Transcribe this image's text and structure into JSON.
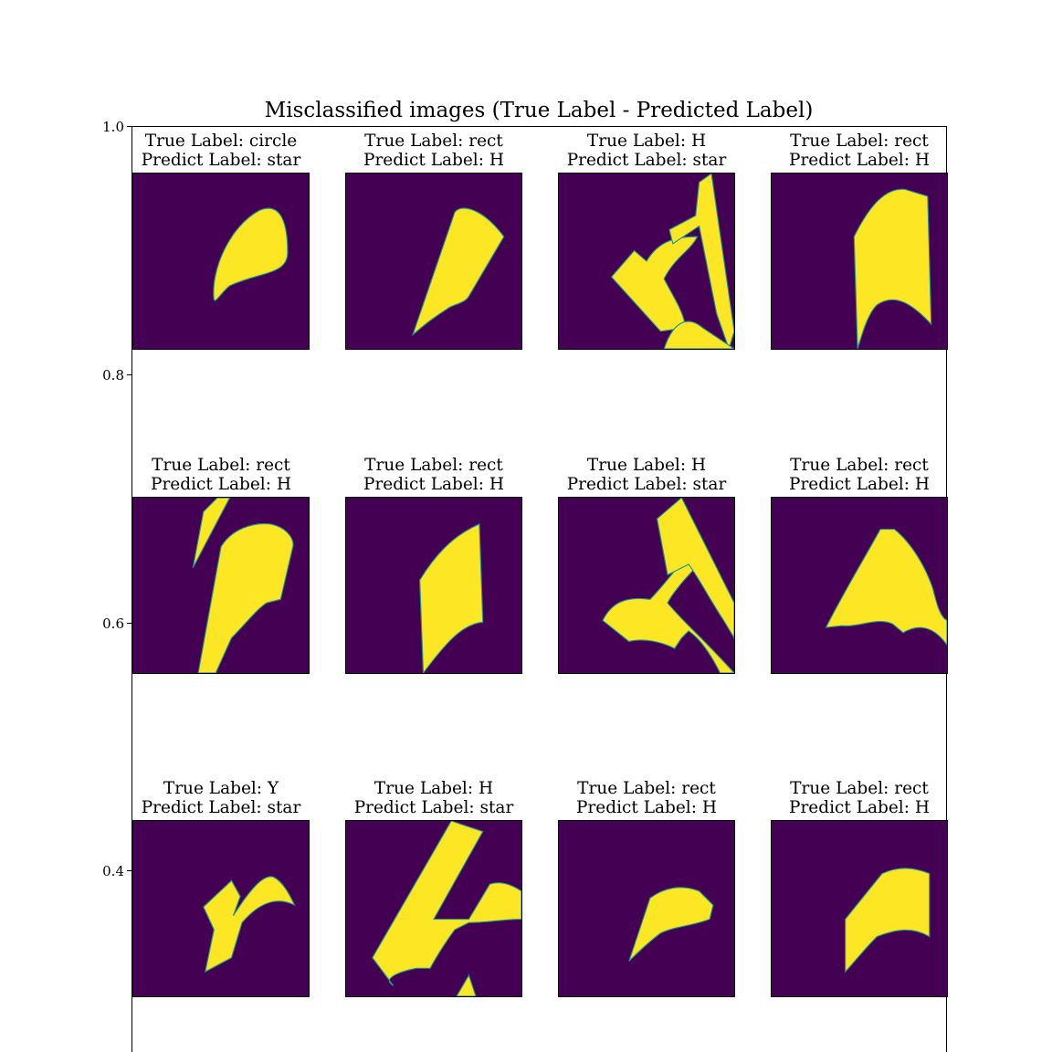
{
  "chart_data": {
    "type": "image-grid",
    "title": "Misclassified images (True Label - Predicted Label)",
    "ylim": [
      0,
      1.0
    ],
    "yticks": [
      "1.0",
      "0.8",
      "0.6",
      "0.4"
    ],
    "colors": {
      "background": "#440154",
      "foreground": "#fde725",
      "edge": "#21918c"
    },
    "panels": [
      {
        "true_label": "True Label: circle",
        "pred_label": "Predict Label: star"
      },
      {
        "true_label": "True Label: rect",
        "pred_label": "Predict Label: H"
      },
      {
        "true_label": "True Label: H",
        "pred_label": "Predict Label: star"
      },
      {
        "true_label": "True Label: rect",
        "pred_label": "Predict Label: H"
      },
      {
        "true_label": "True Label: rect",
        "pred_label": "Predict Label: H"
      },
      {
        "true_label": "True Label: rect",
        "pred_label": "Predict Label: H"
      },
      {
        "true_label": "True Label: H",
        "pred_label": "Predict Label: star"
      },
      {
        "true_label": "True Label: rect",
        "pred_label": "Predict Label: H"
      },
      {
        "true_label": "True Label: Y",
        "pred_label": "Predict Label: star"
      },
      {
        "true_label": "True Label: H",
        "pred_label": "Predict Label: star"
      },
      {
        "true_label": "True Label: rect",
        "pred_label": "Predict Label: H"
      },
      {
        "true_label": "True Label: rect",
        "pred_label": "Predict Label: H"
      }
    ]
  }
}
